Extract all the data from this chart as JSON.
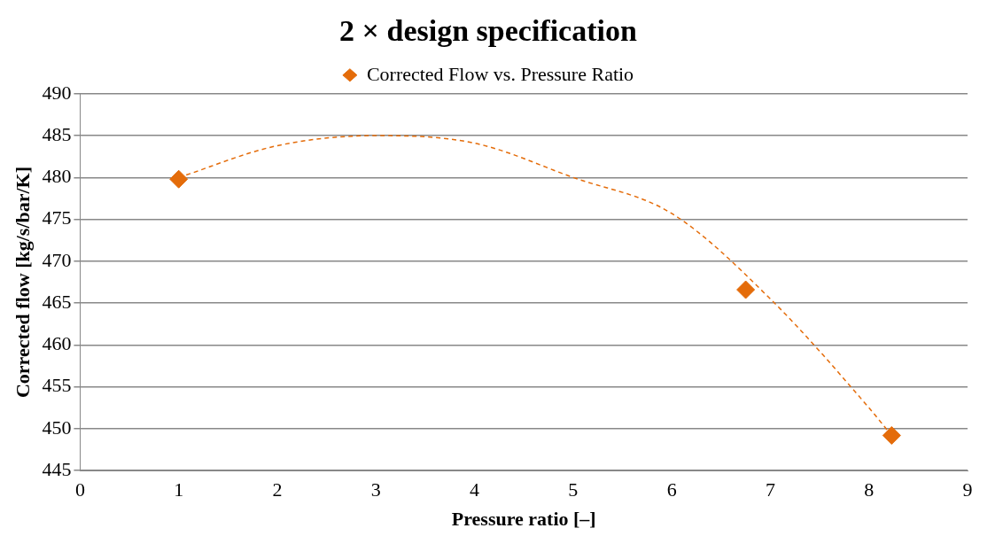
{
  "chart_data": {
    "type": "scatter",
    "title": "2 × design specification",
    "xlabel": "Pressure ratio [–]",
    "ylabel": "Corrected flow [kg/s/bar/K]",
    "xlim": [
      0,
      9
    ],
    "xticks": [
      0,
      1,
      2,
      3,
      4,
      5,
      6,
      7,
      8,
      9
    ],
    "ylim": [
      445,
      490
    ],
    "yticks": [
      445,
      450,
      455,
      460,
      465,
      470,
      475,
      480,
      485,
      490
    ],
    "grid": "y",
    "legend": "top",
    "marker": "diamond",
    "series": [
      {
        "name": "Corrected Flow vs. Pressure Ratio",
        "color": "#e46c0a",
        "x": [
          1,
          6.75,
          8.23
        ],
        "values": [
          479.8,
          466.6,
          449.2
        ]
      },
      {
        "type": "line",
        "line_style": "dashed",
        "marker": "none",
        "color": "#e46c0a",
        "x": [
          1,
          2,
          3,
          4,
          5,
          6,
          7,
          8,
          8.23
        ],
        "values": [
          480,
          483.8,
          485,
          484.1,
          480,
          475.7,
          465.5,
          452.5,
          449.2
        ]
      }
    ]
  }
}
